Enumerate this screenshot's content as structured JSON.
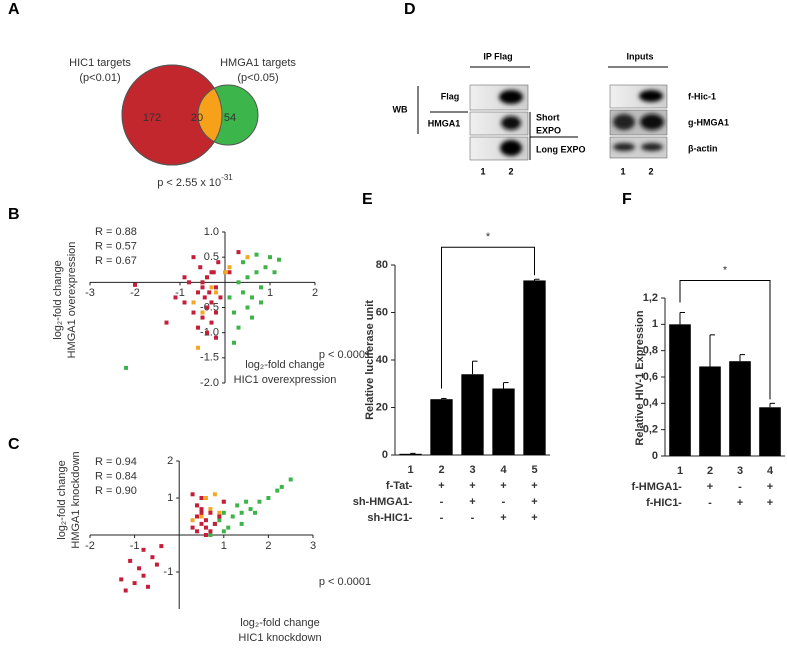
{
  "panel_labels": [
    "A",
    "B",
    "C",
    "D",
    "E",
    "F"
  ],
  "blot": {
    "headers": [
      "IP Flag",
      "Inputs"
    ],
    "wb": "WB",
    "ip_labels": [
      "Flag",
      "HMGA1"
    ],
    "exposures": [
      [
        "Short",
        "EXPO"
      ],
      [
        "Long EXPO"
      ]
    ],
    "input_labels": [
      "f-Hic-1",
      "g-HMGA1",
      "β-actin"
    ],
    "lanes": [
      "1",
      "2",
      "1",
      "2"
    ]
  },
  "chart_data": [
    {
      "type": "venn",
      "sets": [
        {
          "name": "HIC1 targets",
          "subtitle": "(p<0.01)",
          "color": "#c1272d"
        },
        {
          "name": "HMGA1 targets",
          "subtitle": "(p<0.05)",
          "color": "#3cb54a"
        }
      ],
      "overlap_color": "#f7a11a",
      "values": [
        172,
        20,
        54
      ],
      "annotation": "p < 2.55 x 10",
      "annotation_exponent": "-31"
    },
    {
      "type": "scatter",
      "x_label": [
        "log₂-fold change",
        "HIC1 overexpression"
      ],
      "y_label": [
        "log₂-fold change",
        "HMGA1 overexpression"
      ],
      "annotation": "p < 0.0001",
      "xlim": [
        -3,
        2
      ],
      "ylim": [
        -2,
        1
      ],
      "xticks": [
        -3,
        -2,
        -1,
        1,
        2
      ],
      "yticks": [
        {
          "value": 1,
          "label": "1.0"
        },
        0.5,
        -0.5,
        {
          "value": -1,
          "label": "-1.0"
        },
        -1.5,
        {
          "value": -2,
          "label": "-2.0"
        }
      ],
      "series": [
        {
          "name": "R = 0.88",
          "color": "#f5a623",
          "x": [
            -0.5,
            -0.4,
            -0.3,
            -0.6,
            0.1,
            0.5,
            -0.7,
            0.0,
            -0.2,
            -0.5
          ],
          "values": [
            0.0,
            0.1,
            -0.1,
            -1.3,
            0.3,
            0.5,
            -0.4,
            0.2,
            -0.2,
            -0.6
          ]
        },
        {
          "name": "R = 0.57",
          "color": "#3cb44a",
          "x": [
            0.1,
            0.2,
            0.3,
            0.4,
            0.5,
            0.5,
            0.6,
            0.7,
            0.8,
            0.9,
            1.0,
            1.1,
            0.3,
            0.6,
            0.2,
            0.4,
            0.8,
            1.2,
            -2.2,
            0.7
          ],
          "values": [
            -0.3,
            -0.6,
            0.0,
            -0.2,
            -0.5,
            0.1,
            -0.3,
            0.2,
            -0.1,
            0.3,
            0.5,
            0.2,
            -0.9,
            -0.7,
            -1.2,
            0.4,
            -0.4,
            0.45,
            -1.7,
            0.55
          ]
        },
        {
          "name": "R = 0.67",
          "color": "#c41e3a",
          "x": [
            -2.0,
            -1.1,
            -0.9,
            -0.8,
            -0.7,
            -0.6,
            -0.55,
            -0.5,
            -0.5,
            -0.45,
            -0.4,
            -0.4,
            -0.35,
            -0.3,
            -0.3,
            -0.25,
            -0.2,
            -0.2,
            -0.15,
            -0.1,
            -0.6,
            -0.7,
            -0.4,
            -0.3,
            -0.5,
            -1.3,
            -0.9,
            0.1,
            0.3,
            -0.2
          ],
          "values": [
            -0.05,
            -0.3,
            -0.4,
            0.0,
            -0.6,
            -0.2,
            0.3,
            -0.1,
            -0.7,
            -0.3,
            0.1,
            -0.5,
            -0.2,
            -0.4,
            -0.8,
            0.2,
            -0.1,
            -0.6,
            0.4,
            -0.3,
            -0.9,
            0.5,
            -1.0,
            0.2,
            0.0,
            -0.8,
            0.1,
            0.2,
            0.6,
            -1.1
          ]
        }
      ]
    },
    {
      "type": "scatter",
      "x_label": [
        "log₂-fold change",
        "HIC1 knockdown"
      ],
      "y_label": [
        "log₂-fold change",
        "HMGA1 knockdown"
      ],
      "annotation": "p < 0.0001",
      "xlim": [
        -2,
        3
      ],
      "ylim": [
        -2,
        2
      ],
      "xticks": [
        -2,
        -1,
        1,
        2,
        3
      ],
      "yticks": [
        2,
        1,
        -1
      ],
      "series": [
        {
          "name": "R = 0.94",
          "color": "#f5a623",
          "x": [
            0.4,
            0.6,
            0.8,
            1.0,
            0.5,
            0.7,
            0.9,
            0.3
          ],
          "values": [
            0.8,
            1.0,
            1.1,
            0.9,
            0.5,
            0.7,
            0.6,
            0.4
          ]
        },
        {
          "name": "R = 0.84",
          "color": "#3cb44a",
          "x": [
            0.9,
            1.0,
            1.2,
            1.3,
            1.4,
            1.5,
            1.6,
            1.8,
            2.0,
            2.2,
            2.5,
            1.1,
            0.8,
            1.0,
            1.7,
            0.7,
            1.4,
            2.3
          ],
          "values": [
            0.4,
            0.6,
            0.5,
            0.8,
            0.6,
            0.9,
            0.7,
            0.9,
            1.0,
            1.2,
            1.5,
            0.2,
            0.3,
            0.1,
            0.6,
            0.0,
            0.3,
            1.3
          ]
        },
        {
          "name": "R = 0.90",
          "color": "#c41e3a",
          "x": [
            -1.3,
            -1.2,
            -1.0,
            -0.9,
            -0.8,
            -0.7,
            -0.6,
            -0.5,
            -0.4,
            -1.1,
            -0.8,
            0.3,
            0.4,
            0.4,
            0.5,
            0.5,
            0.6,
            0.6,
            0.7,
            0.8,
            0.4,
            0.5,
            0.3,
            0.6,
            0.7,
            0.9,
            0.5,
            1.0
          ],
          "values": [
            -1.2,
            -1.5,
            -1.3,
            -0.9,
            -1.1,
            -1.4,
            -0.6,
            -0.8,
            -0.3,
            -0.7,
            -0.4,
            0.2,
            0.5,
            0.1,
            0.3,
            0.7,
            0.4,
            0.0,
            0.6,
            0.3,
            0.8,
            1.0,
            1.1,
            0.2,
            0.1,
            0.5,
            0.6,
            0.9
          ]
        }
      ]
    },
    {
      "type": "bar",
      "y_label": "Relative luciferase unit",
      "categories": [
        "1",
        "2",
        "3",
        "4",
        "5"
      ],
      "values": [
        0.5,
        23.5,
        34,
        28,
        73.5
      ],
      "errors": [
        0.2,
        0.3,
        5.5,
        2.5,
        0.5
      ],
      "color": "#000000",
      "ylim": [
        0,
        80
      ],
      "yticks": [
        0,
        20,
        40,
        60,
        80
      ],
      "significance": {
        "label": "*",
        "between": [
          "2",
          "5"
        ]
      },
      "conditions": [
        {
          "label": "f-Tat",
          "signs": [
            "-",
            "+",
            "+",
            "+",
            "+"
          ]
        },
        {
          "label": "sh-HMGA1",
          "signs": [
            "-",
            "-",
            "+",
            "-",
            "+"
          ]
        },
        {
          "label": "sh-HIC1",
          "signs": [
            "-",
            "-",
            "-",
            "+",
            "+"
          ]
        }
      ]
    },
    {
      "type": "bar",
      "y_label": "Relative HIV-1 Expression",
      "categories": [
        "1",
        "2",
        "3",
        "4"
      ],
      "values": [
        1.0,
        0.68,
        0.72,
        0.37
      ],
      "errors": [
        0.09,
        0.24,
        0.05,
        0.03
      ],
      "color": "#000000",
      "ylim": [
        0,
        1.2
      ],
      "yticks": [
        0,
        {
          "value": 0.2,
          "label": "0,2"
        },
        {
          "value": 0.4,
          "label": "0,4"
        },
        {
          "value": 0.6,
          "label": "0,6"
        },
        {
          "value": 0.8,
          "label": "0,8"
        },
        1,
        {
          "value": 1.2,
          "label": "1,2"
        }
      ],
      "significance": {
        "label": "*",
        "between": [
          "1",
          "4"
        ]
      },
      "conditions": [
        {
          "label": "f-HMGA1",
          "signs": [
            "-",
            "+",
            "-",
            "+"
          ]
        },
        {
          "label": "f-HIC1",
          "signs": [
            "-",
            "-",
            "+",
            "+"
          ]
        }
      ]
    }
  ]
}
